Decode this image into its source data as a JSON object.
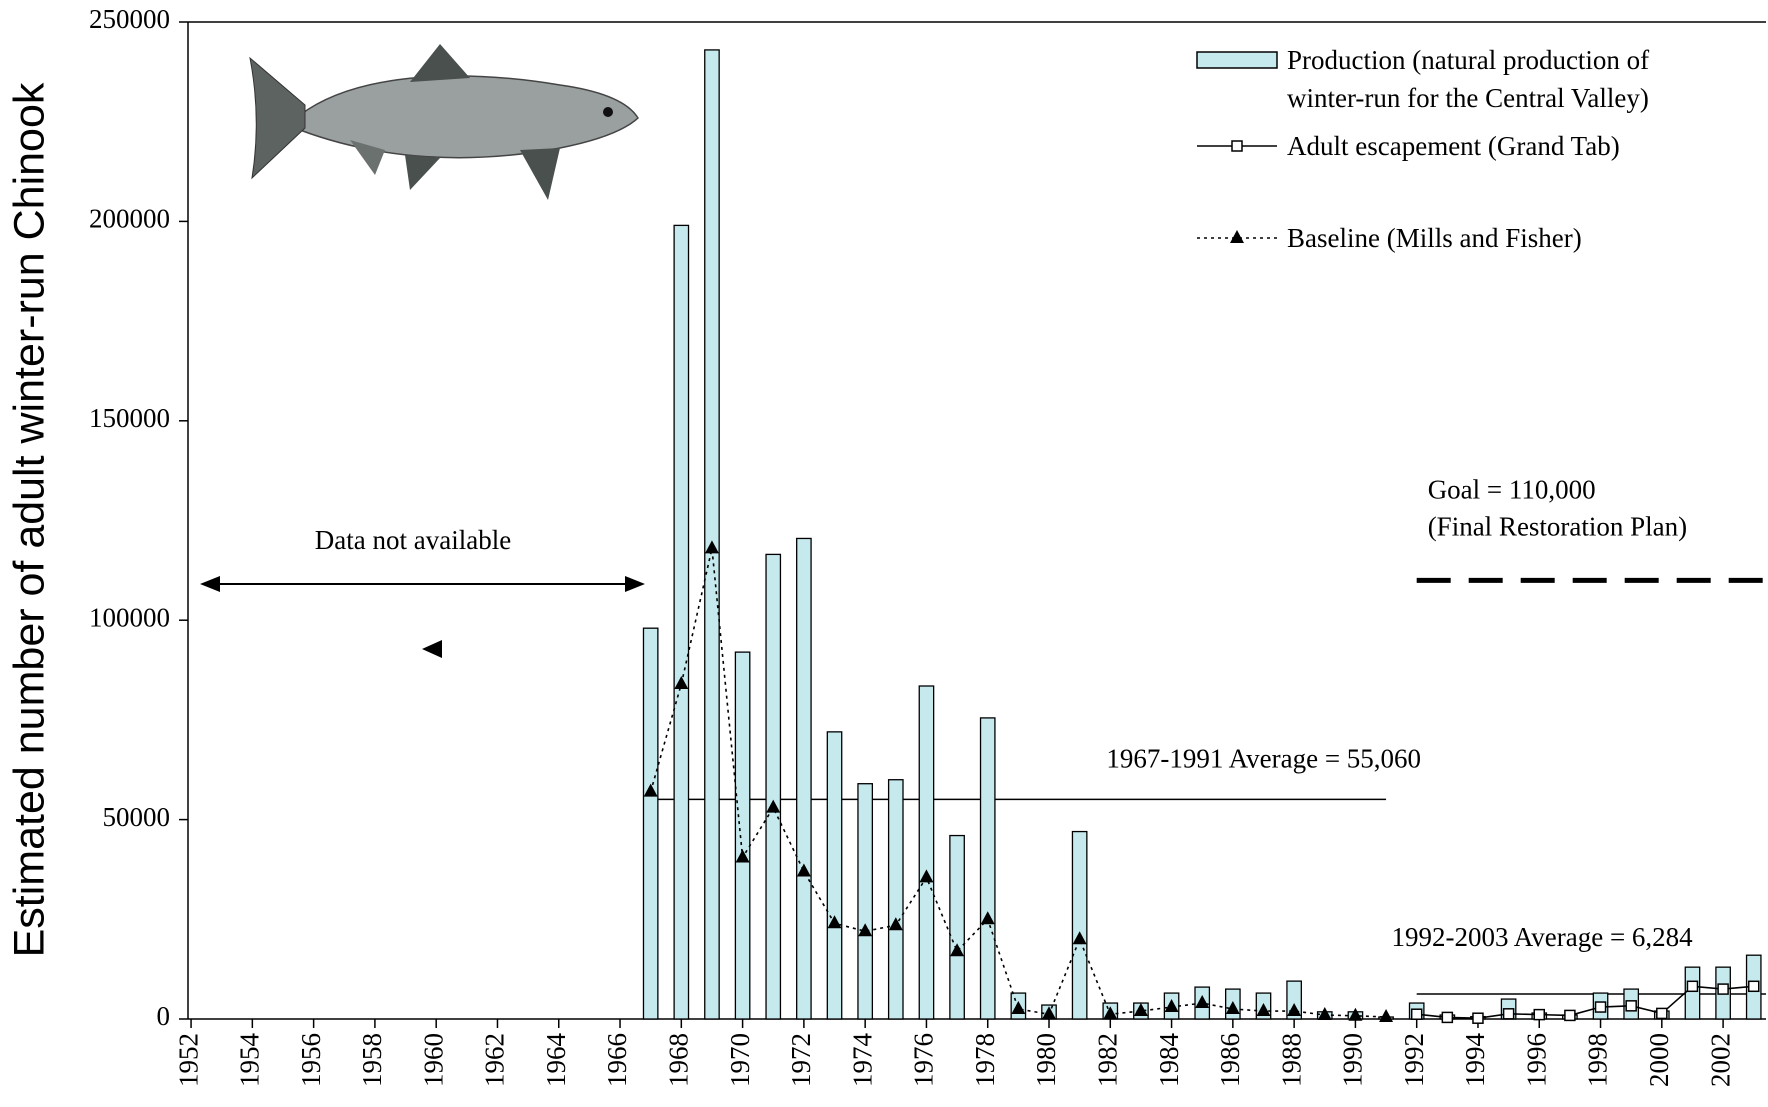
{
  "chart_data": {
    "type": "bar",
    "y_label": "Estimated number of adult winter-run Chinook",
    "xlim": [
      1951.9,
      2003.4
    ],
    "xticks": [
      1952,
      1954,
      1956,
      1958,
      1960,
      1962,
      1964,
      1966,
      1968,
      1970,
      1972,
      1974,
      1976,
      1978,
      1980,
      1982,
      1984,
      1986,
      1988,
      1990,
      1992,
      1994,
      1996,
      1998,
      2000,
      2002
    ],
    "ylim": [
      0,
      250000
    ],
    "yticks": [
      0,
      50000,
      100000,
      150000,
      200000,
      250000
    ],
    "annotation": "Data not available",
    "series": [
      {
        "name": "Production (natural production of winter-run for the Central Valley)",
        "type": "bar",
        "color": "#c6e9ed",
        "x": [
          1967,
          1968,
          1969,
          1970,
          1971,
          1972,
          1973,
          1974,
          1975,
          1976,
          1977,
          1978,
          1979,
          1980,
          1981,
          1982,
          1983,
          1984,
          1985,
          1986,
          1987,
          1988,
          1989,
          1990,
          1991,
          1992,
          1993,
          1994,
          1995,
          1996,
          1997,
          1998,
          1999,
          2000,
          2001,
          2002,
          2003
        ],
        "values": [
          98000,
          199000,
          243000,
          92000,
          116500,
          120500,
          72000,
          59000,
          60000,
          83500,
          46000,
          75500,
          6500,
          3500,
          47000,
          4000,
          4000,
          6500,
          8000,
          7500,
          6500,
          9500,
          1800,
          1800,
          500,
          4000,
          1000,
          600,
          5000,
          1500,
          1000,
          6500,
          7500,
          2000,
          13000,
          13000,
          16000
        ]
      },
      {
        "name": "Adult escapement (Grand Tab)",
        "type": "line",
        "marker": "square",
        "dash": "solid",
        "color": "#000000",
        "x": [
          1992,
          1993,
          1994,
          1995,
          1996,
          1997,
          1998,
          1999,
          2000,
          2001,
          2002,
          2003
        ],
        "values": [
          1200,
          400,
          200,
          1300,
          1100,
          900,
          3000,
          3300,
          1400,
          8200,
          7500,
          8200
        ]
      },
      {
        "name": "Baseline (Mills and Fisher)",
        "type": "line",
        "marker": "triangle",
        "dash": "dotted",
        "color": "#000000",
        "x": [
          1967,
          1968,
          1969,
          1970,
          1971,
          1972,
          1973,
          1974,
          1975,
          1976,
          1977,
          1978,
          1979,
          1980,
          1981,
          1982,
          1983,
          1984,
          1985,
          1986,
          1987,
          1988,
          1989,
          1990,
          1991
        ],
        "values": [
          57000,
          84000,
          118000,
          40500,
          53000,
          37000,
          24000,
          22000,
          23500,
          35500,
          17000,
          25000,
          2500,
          1200,
          20000,
          1200,
          2000,
          3000,
          4000,
          2500,
          2000,
          2000,
          1000,
          800,
          500
        ]
      }
    ],
    "reference_lines": [
      {
        "label": "1967-1991 Average = 55,060",
        "value": 55060,
        "x": [
          1967,
          1991
        ],
        "dash": "solid"
      },
      {
        "label": "1992-2003 Average = 6,284",
        "value": 6284,
        "x": [
          1992,
          2003.4
        ],
        "dash": "solid"
      },
      {
        "label": "Goal = 110,000",
        "sublabel": "(Final Restoration Plan)",
        "value": 110000,
        "x": [
          1992,
          2003.4
        ],
        "dash": "dashed"
      }
    ]
  }
}
